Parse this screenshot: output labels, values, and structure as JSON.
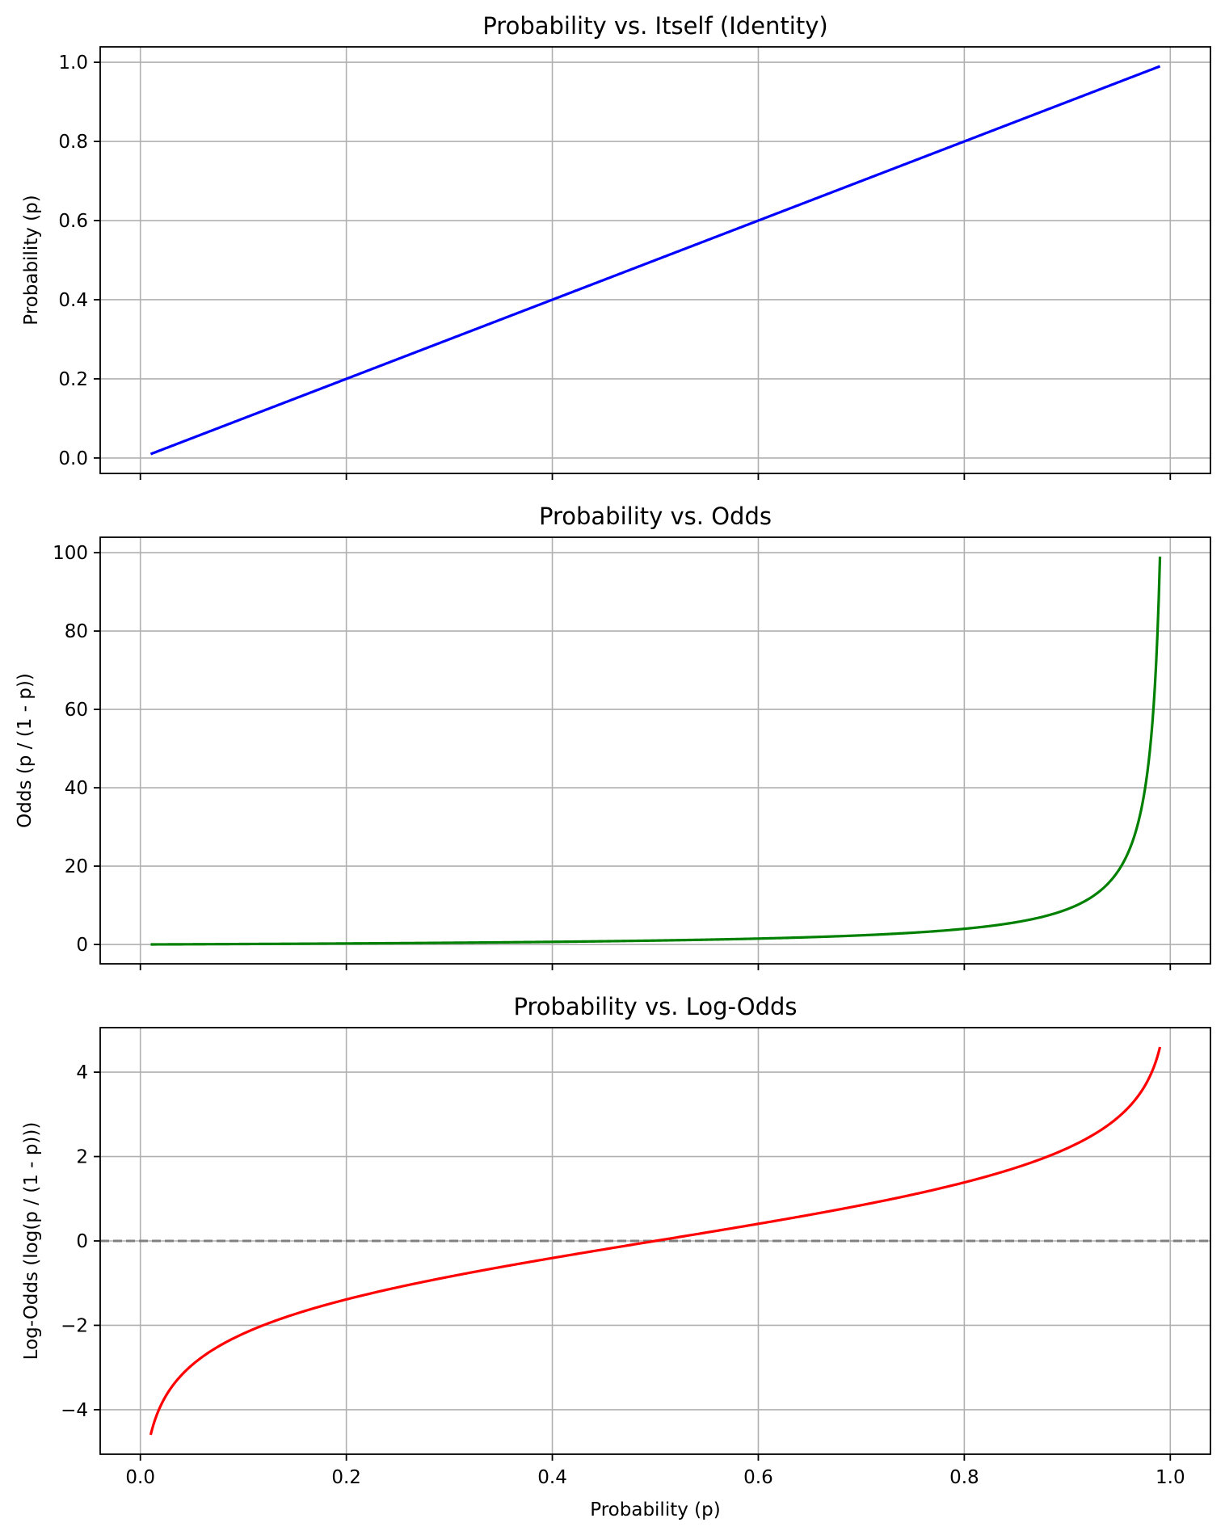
{
  "chart_data": [
    {
      "type": "line",
      "title": "Probability vs. Itself (Identity)",
      "xlabel": "",
      "ylabel": "Probability (p)",
      "xlim": [
        -0.039,
        1.039
      ],
      "ylim": [
        -0.039,
        1.039
      ],
      "xticks": [
        0.0,
        0.2,
        0.4,
        0.6,
        0.8,
        1.0
      ],
      "yticks": [
        0.0,
        0.2,
        0.4,
        0.6,
        0.8,
        1.0
      ],
      "ytick_labels": [
        "0.0",
        "0.2",
        "0.4",
        "0.6",
        "0.8",
        "1.0"
      ],
      "show_xtick_labels": false,
      "grid": true,
      "series": [
        {
          "function": "p",
          "p_range": [
            0.01,
            0.99
          ],
          "color": "#0000ff"
        }
      ],
      "reference_lines": []
    },
    {
      "type": "line",
      "title": "Probability vs. Odds",
      "xlabel": "",
      "ylabel": "Odds (p / (1 - p))",
      "xlim": [
        -0.039,
        1.039
      ],
      "ylim": [
        -4.94,
        103.94
      ],
      "xticks": [
        0.0,
        0.2,
        0.4,
        0.6,
        0.8,
        1.0
      ],
      "yticks": [
        0,
        20,
        40,
        60,
        80,
        100
      ],
      "ytick_labels": [
        "0",
        "20",
        "40",
        "60",
        "80",
        "100"
      ],
      "show_xtick_labels": false,
      "grid": true,
      "series": [
        {
          "function": "odds",
          "p_range": [
            0.01,
            0.99
          ],
          "color": "#008000"
        }
      ],
      "reference_lines": []
    },
    {
      "type": "line",
      "title": "Probability vs. Log-Odds",
      "xlabel": "Probability (p)",
      "ylabel": "Log-Odds (log(p / (1 - p)))",
      "xlim": [
        -0.039,
        1.039
      ],
      "ylim": [
        -5.055,
        5.055
      ],
      "xticks": [
        0.0,
        0.2,
        0.4,
        0.6,
        0.8,
        1.0
      ],
      "xtick_labels": [
        "0.0",
        "0.2",
        "0.4",
        "0.6",
        "0.8",
        "1.0"
      ],
      "yticks": [
        -4,
        -2,
        0,
        2,
        4
      ],
      "ytick_labels": [
        "−4",
        "−2",
        "0",
        "2",
        "4"
      ],
      "show_xtick_labels": true,
      "grid": true,
      "series": [
        {
          "function": "log_odds",
          "p_range": [
            0.01,
            0.99
          ],
          "color": "#ff0000"
        }
      ],
      "reference_lines": [
        {
          "y": 0,
          "style": "dashed",
          "color": "#808080"
        }
      ]
    }
  ]
}
